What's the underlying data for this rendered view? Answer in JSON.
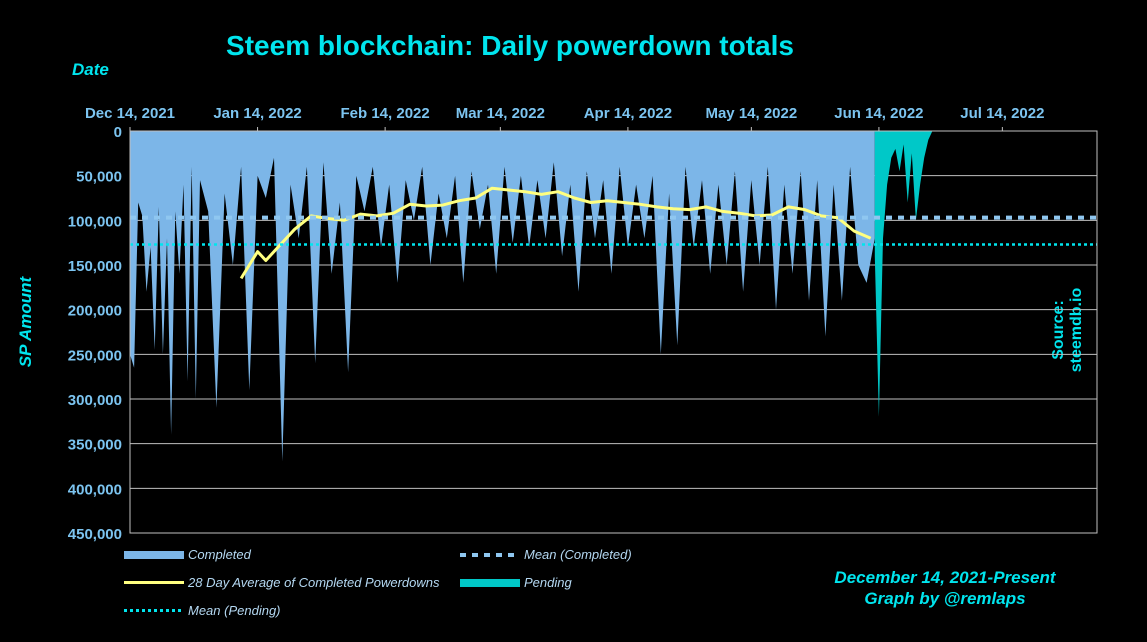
{
  "title": "Steem blockchain: Daily powerdown totals",
  "source": "Source: steemdb.io",
  "footer": {
    "line1": "December 14, 2021-Present",
    "line2": "Graph by @remlaps"
  },
  "colors": {
    "completed": "#7cb6e8",
    "pending": "#00c8c8",
    "average": "#ffff80",
    "mean_completed": "#8fc7f0",
    "mean_pending": "#00e5ee",
    "grid": "#bfbfbf",
    "text": "#7cc4f0"
  },
  "chart_data": {
    "type": "area",
    "title": "Steem blockchain: Daily powerdown totals",
    "xlabel": "Date",
    "ylabel": "SP Amount",
    "y_inverted": true,
    "ylim": [
      0,
      450000
    ],
    "y_ticks": [
      "0",
      "50,000",
      "100,000",
      "150,000",
      "200,000",
      "250,000",
      "300,000",
      "350,000",
      "400,000",
      "450,000"
    ],
    "x_ticks": [
      "Dec 14, 2021",
      "Jan 14, 2022",
      "Feb 14, 2022",
      "Mar 14, 2022",
      "Apr 14, 2022",
      "May 14, 2022",
      "Jun 14, 2022",
      "Jul 14, 2022"
    ],
    "x_range": [
      "Dec 14, 2021",
      "Aug 6, 2022"
    ],
    "grid": true,
    "legend_position": "bottom",
    "series": [
      {
        "name": "Completed",
        "style": "area",
        "x": [
          "Dec 14, 2021",
          "Dec 15, 2021",
          "Dec 16, 2021",
          "Dec 17, 2021",
          "Dec 18, 2021",
          "Dec 19, 2021",
          "Dec 20, 2021",
          "Dec 21, 2021",
          "Dec 22, 2021",
          "Dec 23, 2021",
          "Dec 24, 2021",
          "Dec 25, 2021",
          "Dec 26, 2021",
          "Dec 27, 2021",
          "Dec 28, 2021",
          "Dec 29, 2021",
          "Dec 30, 2021",
          "Dec 31, 2021",
          "Jan 2, 2022",
          "Jan 4, 2022",
          "Jan 6, 2022",
          "Jan 8, 2022",
          "Jan 10, 2022",
          "Jan 12, 2022",
          "Jan 14, 2022",
          "Jan 16, 2022",
          "Jan 18, 2022",
          "Jan 20, 2022",
          "Jan 22, 2022",
          "Jan 24, 2022",
          "Jan 26, 2022",
          "Jan 28, 2022",
          "Jan 30, 2022",
          "Feb 1, 2022",
          "Feb 3, 2022",
          "Feb 5, 2022",
          "Feb 7, 2022",
          "Feb 9, 2022",
          "Feb 11, 2022",
          "Feb 13, 2022",
          "Feb 15, 2022",
          "Feb 17, 2022",
          "Feb 19, 2022",
          "Feb 21, 2022",
          "Feb 23, 2022",
          "Feb 25, 2022",
          "Feb 27, 2022",
          "Mar 1, 2022",
          "Mar 3, 2022",
          "Mar 5, 2022",
          "Mar 7, 2022",
          "Mar 9, 2022",
          "Mar 11, 2022",
          "Mar 13, 2022",
          "Mar 15, 2022",
          "Mar 17, 2022",
          "Mar 19, 2022",
          "Mar 21, 2022",
          "Mar 23, 2022",
          "Mar 25, 2022",
          "Mar 27, 2022",
          "Mar 29, 2022",
          "Mar 31, 2022",
          "Apr 2, 2022",
          "Apr 4, 2022",
          "Apr 6, 2022",
          "Apr 8, 2022",
          "Apr 10, 2022",
          "Apr 12, 2022",
          "Apr 14, 2022",
          "Apr 16, 2022",
          "Apr 18, 2022",
          "Apr 20, 2022",
          "Apr 22, 2022",
          "Apr 24, 2022",
          "Apr 26, 2022",
          "Apr 28, 2022",
          "Apr 30, 2022",
          "May 2, 2022",
          "May 4, 2022",
          "May 6, 2022",
          "May 8, 2022",
          "May 10, 2022",
          "May 12, 2022",
          "May 14, 2022",
          "May 16, 2022",
          "May 18, 2022",
          "May 20, 2022",
          "May 22, 2022",
          "May 24, 2022",
          "May 26, 2022",
          "May 28, 2022",
          "May 30, 2022",
          "Jun 1, 2022",
          "Jun 3, 2022",
          "Jun 5, 2022",
          "Jun 7, 2022",
          "Jun 9, 2022",
          "Jun 11, 2022",
          "Jun 13, 2022"
        ],
        "values": [
          250000,
          265000,
          80000,
          95000,
          180000,
          130000,
          245000,
          85000,
          250000,
          120000,
          340000,
          90000,
          160000,
          60000,
          280000,
          40000,
          300000,
          55000,
          90000,
          310000,
          70000,
          150000,
          40000,
          290000,
          50000,
          75000,
          30000,
          370000,
          60000,
          120000,
          40000,
          260000,
          35000,
          160000,
          80000,
          270000,
          50000,
          90000,
          40000,
          130000,
          60000,
          170000,
          55000,
          100000,
          40000,
          150000,
          70000,
          120000,
          50000,
          170000,
          45000,
          110000,
          60000,
          160000,
          40000,
          125000,
          50000,
          130000,
          55000,
          120000,
          35000,
          140000,
          60000,
          180000,
          45000,
          120000,
          55000,
          160000,
          40000,
          130000,
          60000,
          120000,
          50000,
          250000,
          70000,
          240000,
          40000,
          130000,
          55000,
          160000,
          60000,
          150000,
          45000,
          180000,
          55000,
          150000,
          40000,
          200000,
          60000,
          160000,
          45000,
          190000,
          55000,
          230000,
          60000,
          190000,
          40000,
          150000,
          170000,
          120000
        ],
        "color": "#7cb6e8"
      },
      {
        "name": "28 Day Average of Completed Powerdowns",
        "style": "line",
        "x": [
          "Jan 10, 2022",
          "Jan 14, 2022",
          "Jan 16, 2022",
          "Jan 19, 2022",
          "Jan 23, 2022",
          "Jan 27, 2022",
          "Jan 31, 2022",
          "Feb 4, 2022",
          "Feb 8, 2022",
          "Feb 12, 2022",
          "Feb 16, 2022",
          "Feb 20, 2022",
          "Feb 24, 2022",
          "Feb 28, 2022",
          "Mar 4, 2022",
          "Mar 8, 2022",
          "Mar 12, 2022",
          "Mar 16, 2022",
          "Mar 20, 2022",
          "Mar 24, 2022",
          "Mar 28, 2022",
          "Apr 1, 2022",
          "Apr 5, 2022",
          "Apr 9, 2022",
          "Apr 13, 2022",
          "Apr 17, 2022",
          "Apr 21, 2022",
          "Apr 25, 2022",
          "Apr 29, 2022",
          "May 3, 2022",
          "May 7, 2022",
          "May 11, 2022",
          "May 15, 2022",
          "May 19, 2022",
          "May 23, 2022",
          "May 27, 2022",
          "May 31, 2022",
          "Jun 4, 2022",
          "Jun 8, 2022",
          "Jun 12, 2022"
        ],
        "values": [
          165000,
          135000,
          145000,
          130000,
          110000,
          95000,
          98000,
          100000,
          93000,
          95000,
          92000,
          82000,
          84000,
          83000,
          78000,
          75000,
          64000,
          66000,
          68000,
          71000,
          68000,
          75000,
          80000,
          78000,
          80000,
          82000,
          85000,
          87000,
          88000,
          85000,
          90000,
          92000,
          95000,
          94000,
          85000,
          88000,
          95000,
          97000,
          112000,
          120000
        ],
        "color": "#ffff80"
      },
      {
        "name": "Pending",
        "style": "area",
        "x": [
          "Jun 13, 2022",
          "Jun 14, 2022",
          "Jun 15, 2022",
          "Jun 16, 2022",
          "Jun 17, 2022",
          "Jun 18, 2022",
          "Jun 19, 2022",
          "Jun 20, 2022",
          "Jun 21, 2022",
          "Jun 22, 2022",
          "Jun 23, 2022",
          "Jun 24, 2022",
          "Jun 25, 2022",
          "Jun 26, 2022",
          "Jun 27, 2022"
        ],
        "values": [
          140000,
          320000,
          120000,
          60000,
          30000,
          20000,
          45000,
          15000,
          80000,
          25000,
          100000,
          60000,
          30000,
          10000,
          0
        ],
        "color": "#00c8c8"
      },
      {
        "name": "Mean (Completed)",
        "style": "dashed",
        "value": 97000,
        "color": "#8fc7f0"
      },
      {
        "name": "Mean (Pending)",
        "style": "dotted",
        "value": 127000,
        "color": "#00e5ee"
      }
    ]
  },
  "legend": {
    "completed": "Completed",
    "mean_completed": "Mean (Completed)",
    "average": "28 Day Average of Completed Powerdowns",
    "pending": "Pending",
    "mean_pending": "Mean (Pending)"
  }
}
